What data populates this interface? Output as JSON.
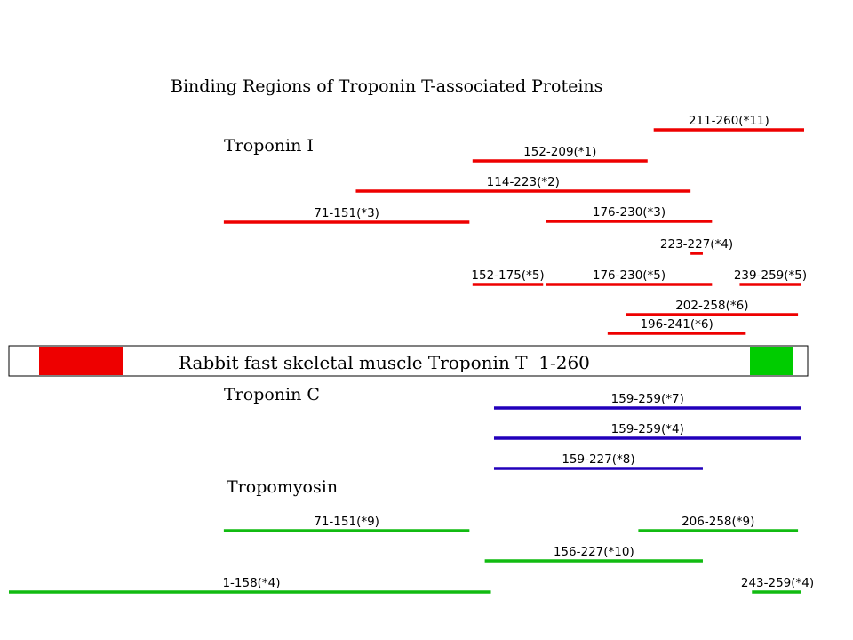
{
  "title": "Binding Regions of Troponin T-associated Proteins",
  "colors": {
    "troponin_i": "#ee0000",
    "troponin_c": "#2200bb",
    "tropomyosin": "#11bb11",
    "tnt_left_block": "#ee0000",
    "tnt_right_block": "#00cc00"
  },
  "troponin_t": {
    "label": "Rabbit fast skeletal muscle Troponin T  1-260",
    "start": 1,
    "end": 260
  },
  "groups": [
    {
      "name": "Troponin I",
      "color_key": "troponin_i",
      "ranges": [
        {
          "label": "211-260(*11)",
          "start": 211,
          "end": 260
        },
        {
          "label": "152-209(*1)",
          "start": 152,
          "end": 209
        },
        {
          "label": "114-223(*2)",
          "start": 114,
          "end": 223
        },
        {
          "label": "71-151(*3)",
          "start": 71,
          "end": 151
        },
        {
          "label": "176-230(*3)",
          "start": 176,
          "end": 230
        },
        {
          "label": "223-227(*4)",
          "start": 223,
          "end": 227
        },
        {
          "label": "152-175(*5)",
          "start": 152,
          "end": 175
        },
        {
          "label": "176-230(*5)",
          "start": 176,
          "end": 230
        },
        {
          "label": "239-259(*5)",
          "start": 239,
          "end": 259
        },
        {
          "label": "202-258(*6)",
          "start": 202,
          "end": 258
        },
        {
          "label": "196-241(*6)",
          "start": 196,
          "end": 241
        }
      ]
    },
    {
      "name": "Troponin C",
      "color_key": "troponin_c",
      "ranges": [
        {
          "label": "159-259(*7)",
          "start": 159,
          "end": 259
        },
        {
          "label": "159-259(*4)",
          "start": 159,
          "end": 259
        },
        {
          "label": "159-227(*8)",
          "start": 159,
          "end": 227
        }
      ]
    },
    {
      "name": "Tropomyosin",
      "color_key": "tropomyosin",
      "ranges": [
        {
          "label": "71-151(*9)",
          "start": 71,
          "end": 151
        },
        {
          "label": "206-258(*9)",
          "start": 206,
          "end": 258
        },
        {
          "label": "156-227(*10)",
          "start": 156,
          "end": 227
        },
        {
          "label": "1-158(*4)",
          "start": 1,
          "end": 158
        },
        {
          "label": "243-259(*4)",
          "start": 243,
          "end": 259
        }
      ]
    }
  ]
}
